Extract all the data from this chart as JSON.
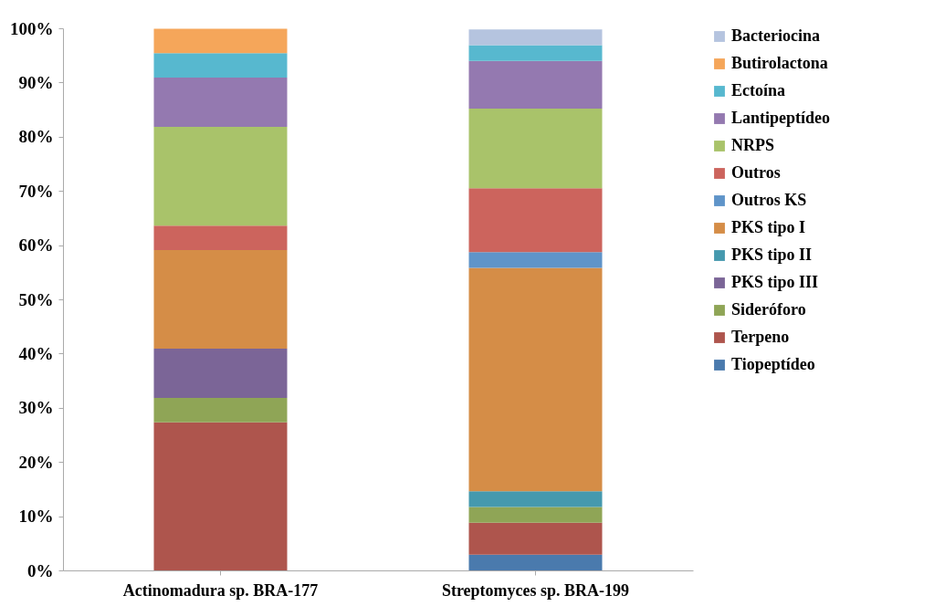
{
  "chart_data": {
    "type": "bar",
    "stacked": true,
    "legend": "right",
    "grid": false,
    "categories": [
      "Actinomadura sp. BRA-177",
      "Streptomyces sp. BRA-199"
    ],
    "ylim": [
      0,
      100
    ],
    "yticks": [
      {
        "value": 0,
        "label": "0%"
      },
      {
        "value": 10,
        "label": "10%"
      },
      {
        "value": 20,
        "label": "20%"
      },
      {
        "value": 30,
        "label": "30%"
      },
      {
        "value": 40,
        "label": "40%"
      },
      {
        "value": 50,
        "label": "50%"
      },
      {
        "value": 60,
        "label": "60%"
      },
      {
        "value": 70,
        "label": "70%"
      },
      {
        "value": 80,
        "label": "80%"
      },
      {
        "value": 90,
        "label": "90%"
      },
      {
        "value": 100,
        "label": "100%"
      }
    ],
    "series": [
      {
        "name": "Tiopeptídeo",
        "color": "#4a7aad",
        "values": [
          null,
          2.9
        ]
      },
      {
        "name": "Terpeno",
        "color": "#ae554d",
        "values": [
          27.3,
          5.9
        ]
      },
      {
        "name": "Sideróforo",
        "color": "#8fa556",
        "values": [
          4.5,
          2.9
        ]
      },
      {
        "name": "PKS tipo III",
        "color": "#7b6597",
        "values": [
          9.1,
          null
        ]
      },
      {
        "name": "PKS tipo II",
        "color": "#4599ae",
        "values": [
          null,
          2.9
        ]
      },
      {
        "name": "PKS tipo I",
        "color": "#d58d47",
        "values": [
          18.2,
          41.2
        ]
      },
      {
        "name": "Outros KS",
        "color": "#5f94c9",
        "values": [
          null,
          2.9
        ]
      },
      {
        "name": "Outros",
        "color": "#cc645d",
        "values": [
          4.5,
          11.8
        ]
      },
      {
        "name": "NRPS",
        "color": "#a9c36a",
        "values": [
          18.2,
          14.7
        ]
      },
      {
        "name": "Lantipeptídeo",
        "color": "#9479b0",
        "values": [
          9.1,
          8.8
        ]
      },
      {
        "name": "Ectoína",
        "color": "#57b8cf",
        "values": [
          4.5,
          2.9
        ]
      },
      {
        "name": "Butirolactona",
        "color": "#f5a65a",
        "values": [
          4.5,
          null
        ]
      },
      {
        "name": "Bacteriocina",
        "color": "#b5c4df",
        "values": [
          null,
          2.9
        ]
      }
    ]
  }
}
